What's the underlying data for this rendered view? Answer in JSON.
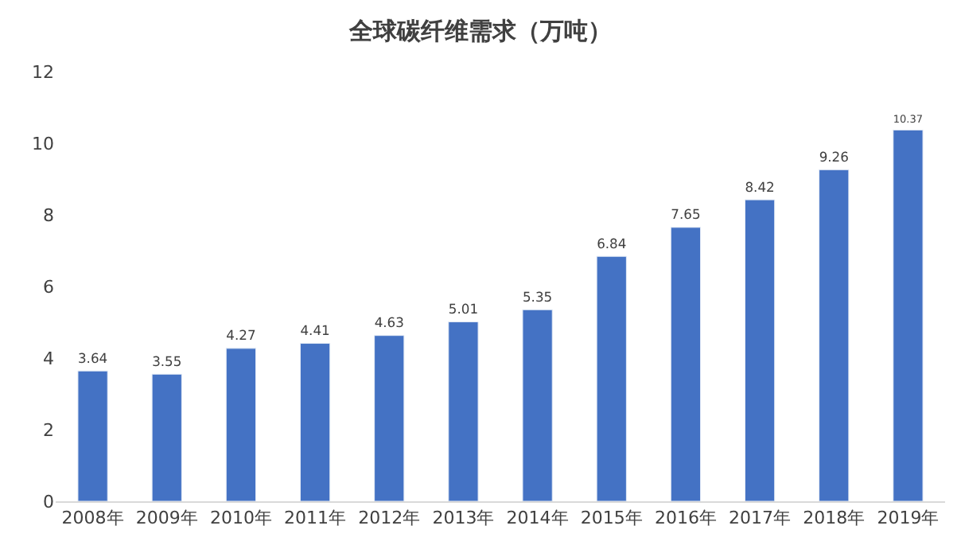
{
  "chart_data": {
    "type": "bar",
    "title": "全球碳纤维需求（万吨）",
    "categories": [
      "2008年",
      "2009年",
      "2010年",
      "2011年",
      "2012年",
      "2013年",
      "2014年",
      "2015年",
      "2016年",
      "2017年",
      "2018年",
      "2019年"
    ],
    "values": [
      3.64,
      3.55,
      4.27,
      4.41,
      4.63,
      5.01,
      5.35,
      6.84,
      7.65,
      8.42,
      9.26,
      10.37
    ],
    "color": "#4472c4",
    "ylim": [
      0,
      12
    ],
    "yticks": [
      0,
      2,
      4,
      6,
      8,
      10,
      12
    ],
    "data_labels": true
  }
}
